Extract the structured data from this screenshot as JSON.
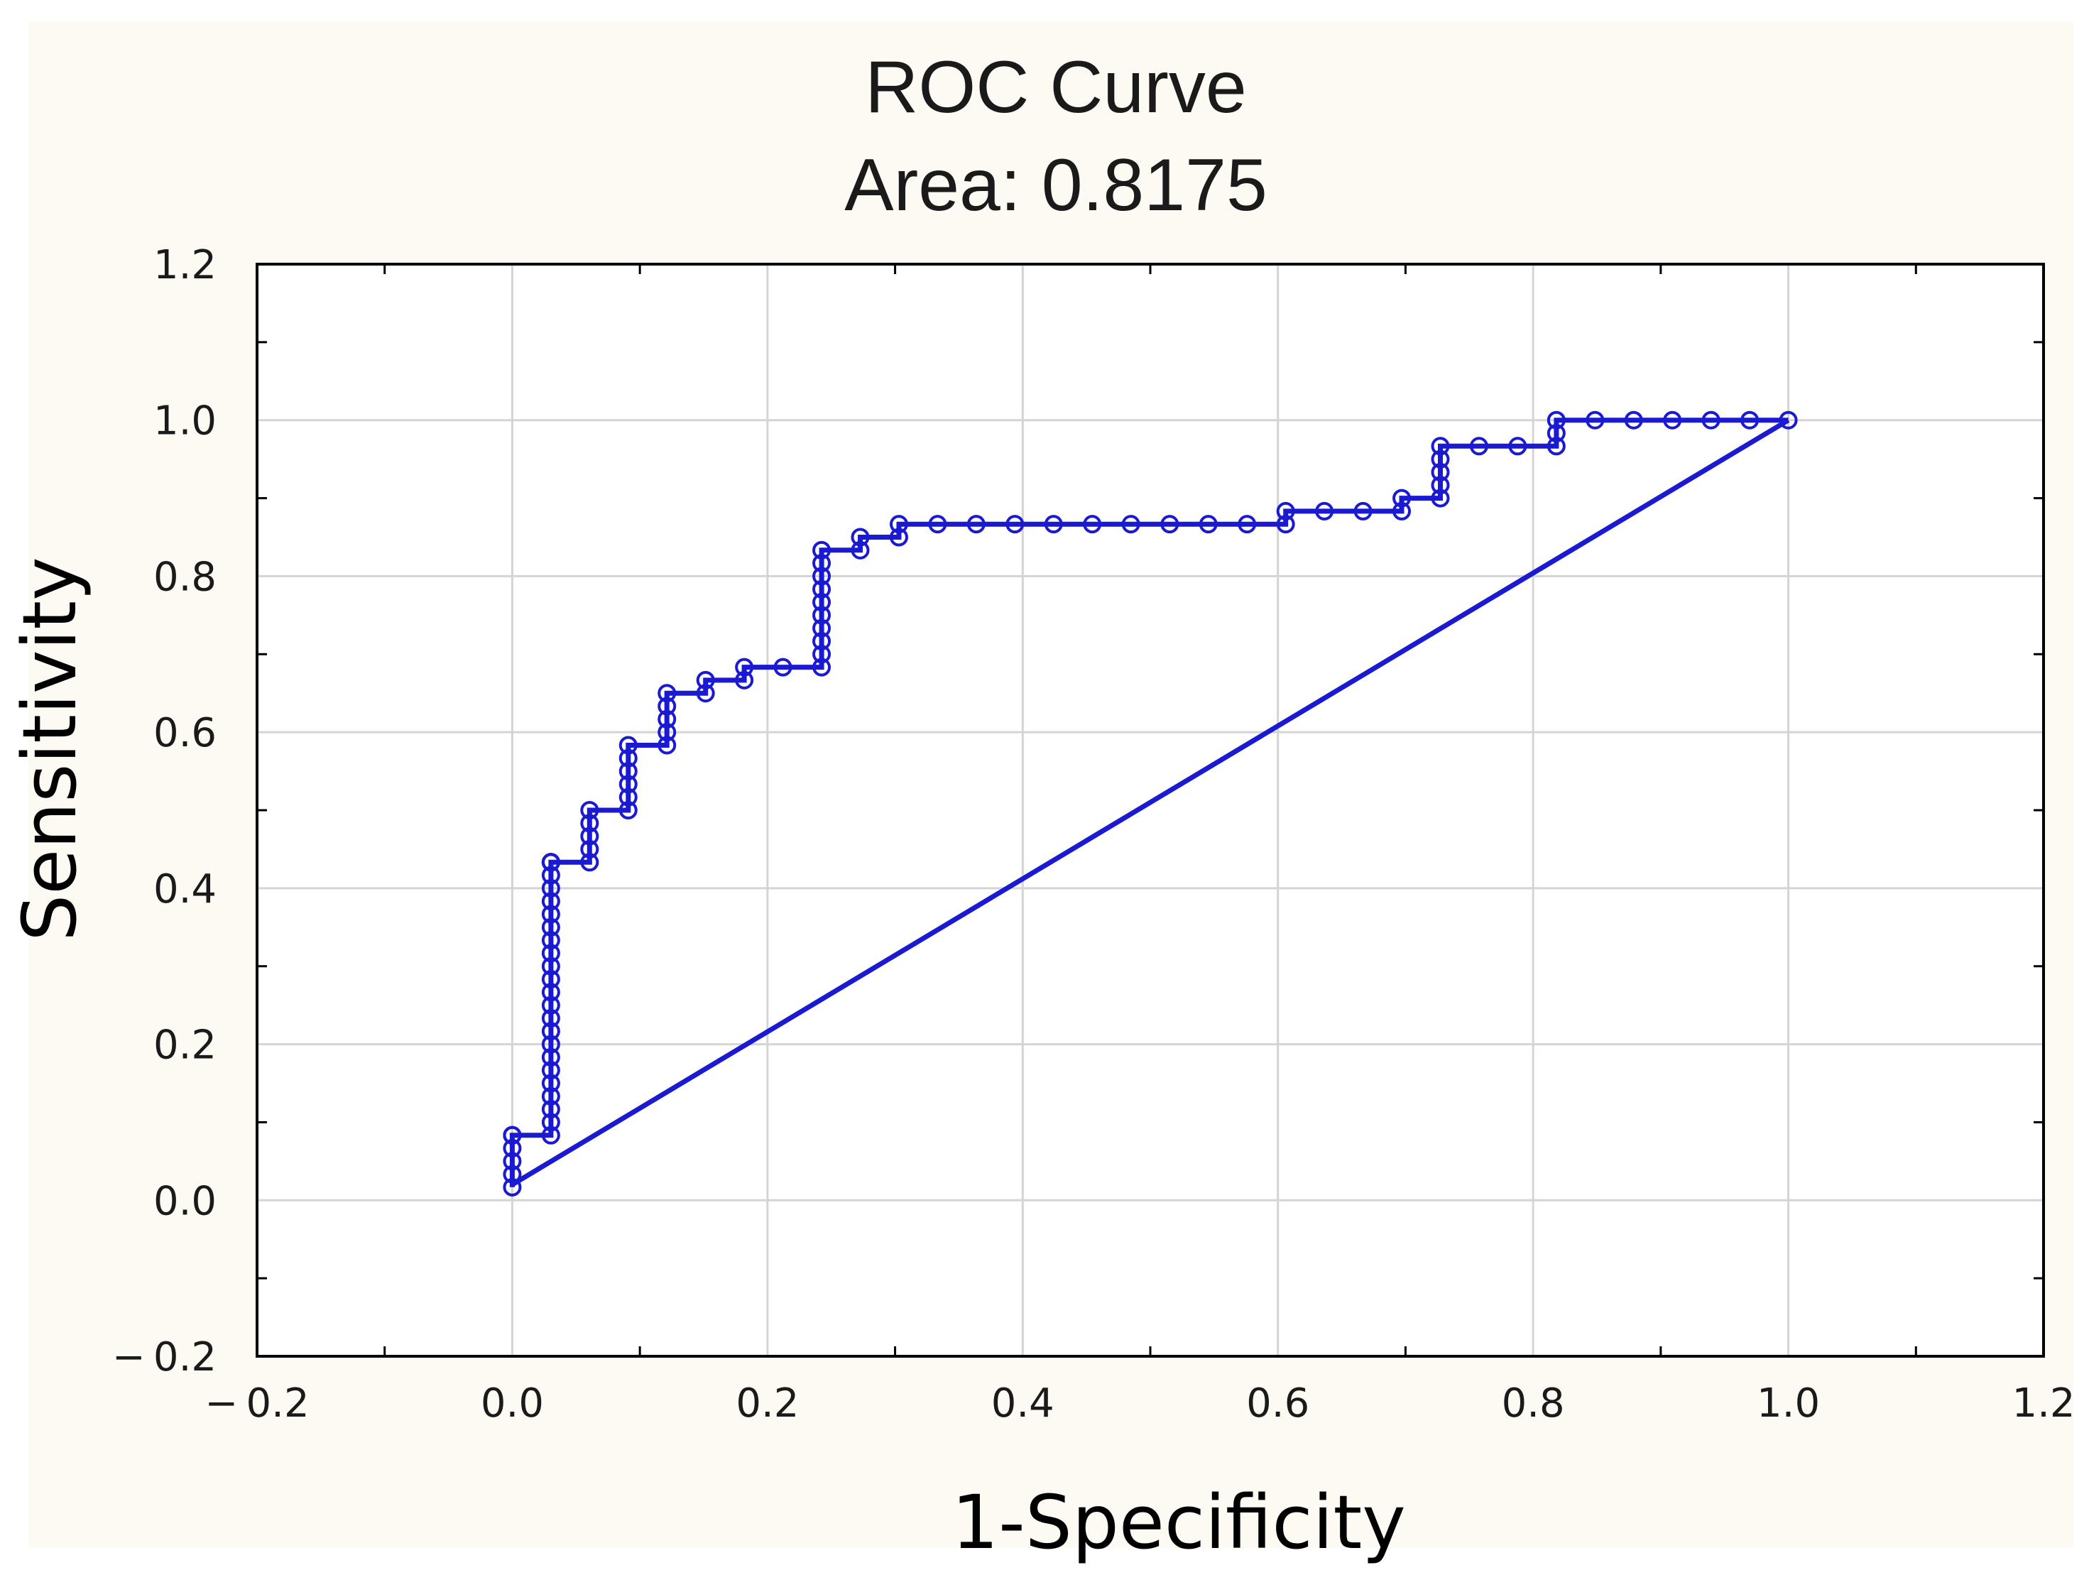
{
  "chart_data": {
    "type": "line",
    "title": "ROC Curve",
    "subtitle": "Area: 0.8175",
    "xlabel": "1-Specificity",
    "ylabel": "Sensitivity",
    "xlim": [
      -0.2,
      1.2
    ],
    "ylim": [
      -0.2,
      1.2
    ],
    "x_ticks": [
      -0.2,
      0.0,
      0.2,
      0.4,
      0.6,
      0.8,
      1.0,
      1.2
    ],
    "y_ticks": [
      -0.2,
      0.0,
      0.2,
      0.4,
      0.6,
      0.8,
      1.0,
      1.2
    ],
    "x_tick_labels": [
      "− 0.2",
      "0.0",
      "0.2",
      "0.4",
      "0.6",
      "0.8",
      "1.0",
      "1.2"
    ],
    "y_tick_labels": [
      "− 0.2",
      "0.0",
      "0.2",
      "0.4",
      "0.6",
      "0.8",
      "1.0",
      "1.2"
    ],
    "grid": true,
    "colors": {
      "series": "#1a1ad2",
      "background_outer": "#fdfaf3",
      "plot_background": "#ffffff",
      "grid": "#d4d4d4",
      "axis": "#000000"
    },
    "series": [
      {
        "marker": "circle",
        "x": [
          0.0,
          0.0,
          0.0,
          0.0,
          0.0,
          0.0,
          0.0,
          0.0,
          0.0303,
          0.0303,
          0.0303,
          0.0303,
          0.0303,
          0.0303,
          0.0303,
          0.0303,
          0.0303,
          0.0303,
          0.0303,
          0.0303,
          0.0303,
          0.0303,
          0.0303,
          0.0303,
          0.0303,
          0.0303,
          0.0303,
          0.0303,
          0.0303,
          0.0303,
          0.0303,
          0.0303,
          0.0303,
          0.0303,
          0.0303,
          0.0303,
          0.0303,
          0.0606,
          0.0606,
          0.0606,
          0.0606,
          0.0606,
          0.0909,
          0.0909,
          0.0909,
          0.0909,
          0.0909,
          0.0909,
          0.1212,
          0.1212,
          0.1212,
          0.1212,
          0.1212,
          0.1515,
          0.1515,
          0.1818,
          0.1818,
          0.2121,
          0.2424,
          0.2424,
          0.2424,
          0.2424,
          0.2424,
          0.2424,
          0.2424,
          0.2424,
          0.2424,
          0.2424,
          0.2727,
          0.2727,
          0.303,
          0.303,
          0.3333,
          0.3636,
          0.3939,
          0.4242,
          0.4545,
          0.4848,
          0.5152,
          0.5455,
          0.5758,
          0.6061,
          0.6061,
          0.6364,
          0.6667,
          0.697,
          0.697,
          0.7273,
          0.7273,
          0.7273,
          0.7273,
          0.7273,
          0.7576,
          0.7879,
          0.8182,
          0.8182,
          0.8182,
          0.8485,
          0.8788,
          0.9091,
          0.9394,
          0.9697,
          1.0
        ],
        "y": [
          0.0167,
          0.0333,
          0.05,
          0.0667,
          0.0833,
          0.0833,
          0.0833,
          0.0833,
          0.0833,
          0.1,
          0.1167,
          0.1333,
          0.15,
          0.1667,
          0.1833,
          0.2,
          0.2167,
          0.2333,
          0.25,
          0.2667,
          0.2833,
          0.3,
          0.3167,
          0.3333,
          0.35,
          0.3667,
          0.3833,
          0.4,
          0.4167,
          0.4333,
          0.4333,
          0.4333,
          0.4333,
          0.4333,
          0.4333,
          0.4333,
          0.4333,
          0.4333,
          0.45,
          0.4667,
          0.4833,
          0.5,
          0.5,
          0.5167,
          0.5333,
          0.55,
          0.5667,
          0.5833,
          0.5833,
          0.6,
          0.6167,
          0.6333,
          0.65,
          0.65,
          0.6667,
          0.6667,
          0.6833,
          0.6833,
          0.6833,
          0.7,
          0.7167,
          0.7333,
          0.75,
          0.7667,
          0.7833,
          0.8,
          0.8167,
          0.8333,
          0.8333,
          0.85,
          0.85,
          0.8667,
          0.8667,
          0.8667,
          0.8667,
          0.8667,
          0.8667,
          0.8667,
          0.8667,
          0.8667,
          0.8667,
          0.8667,
          0.8833,
          0.8833,
          0.8833,
          0.8833,
          0.9,
          0.9,
          0.9167,
          0.9333,
          0.95,
          0.9667,
          0.9667,
          0.9667,
          0.9667,
          0.9833,
          1.0,
          1.0,
          1.0,
          1.0,
          1.0,
          1.0,
          1.0
        ]
      },
      {
        "marker": "none",
        "x": [
          0.0,
          1.0
        ],
        "y": [
          0.02,
          1.0
        ]
      }
    ]
  }
}
